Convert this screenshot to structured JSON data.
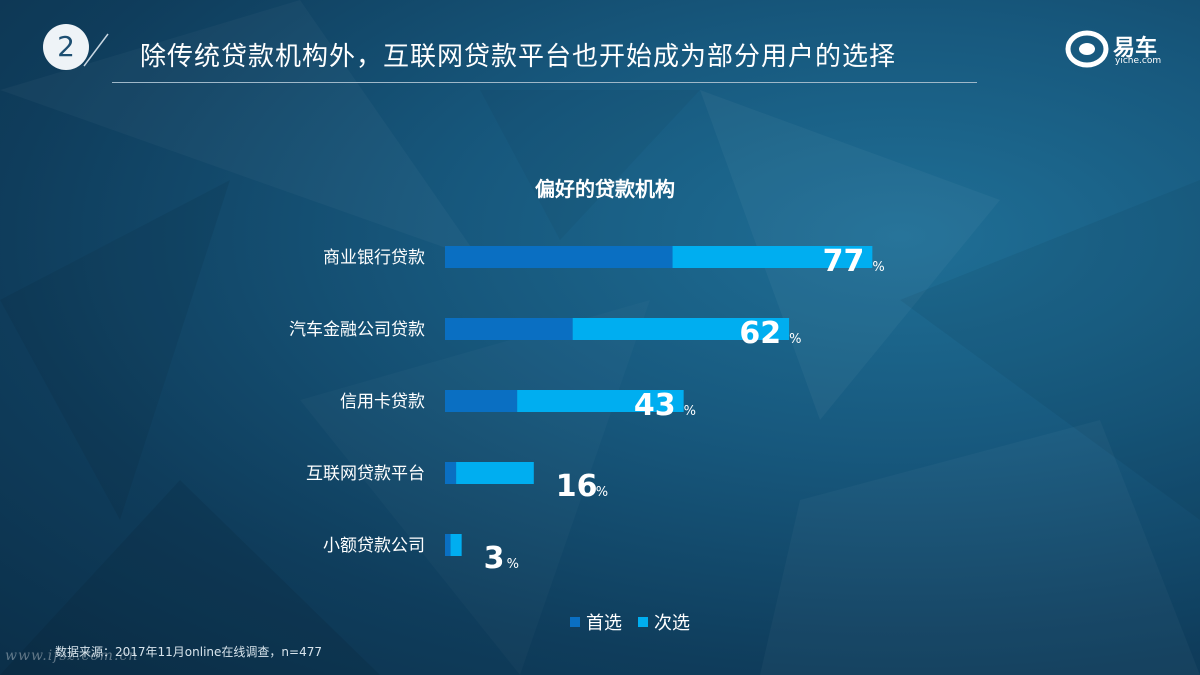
{
  "header": {
    "section_number": "2",
    "title": "除传统贷款机构外，互联网贷款平台也开始成为部分用户的选择"
  },
  "logo": {
    "cn": "易车",
    "en": "yiche.com"
  },
  "colors": {
    "first_choice": "#0a6fc2",
    "second_choice": "#00aef0"
  },
  "chart_data": {
    "type": "bar",
    "orientation": "horizontal",
    "stacked": true,
    "title": "偏好的贷款机构",
    "categories": [
      "商业银行贷款",
      "汽车金融公司贷款",
      "信用卡贷款",
      "互联网贷款平台",
      "小额贷款公司"
    ],
    "series": [
      {
        "name": "首选",
        "values": [
          41,
          23,
          13,
          2,
          1
        ]
      },
      {
        "name": "次选",
        "values": [
          36,
          39,
          30,
          14,
          2
        ]
      }
    ],
    "totals": [
      77,
      62,
      43,
      16,
      3
    ],
    "unit": "%",
    "xlim": [
      0,
      100
    ],
    "grid": false,
    "legend": "bottom"
  },
  "footer": {
    "source": "数据来源：2017年11月online在线调查，n=477",
    "watermark": "www.ifsz.com.cn"
  }
}
